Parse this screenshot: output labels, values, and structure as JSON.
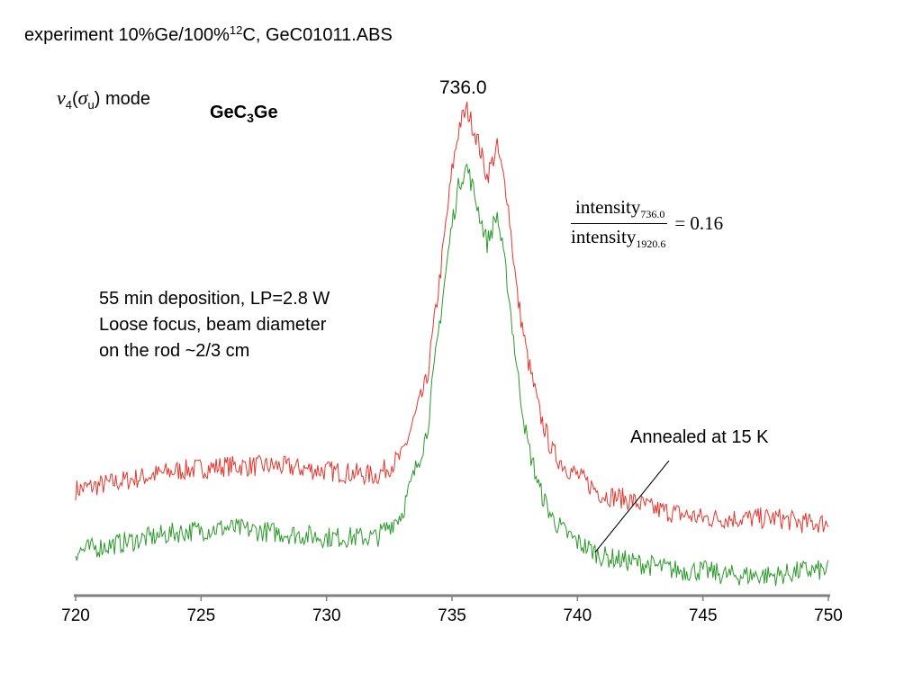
{
  "header": {
    "title_prefix": "experiment 10%Ge/100%",
    "title_sup": "12",
    "title_suffix": "C, GeC01011.ABS"
  },
  "mode_label": {
    "nu": "ν",
    "nu_sub": "4",
    "open": "(",
    "sigma": "σ",
    "sigma_sub": "u",
    "close": ") mode"
  },
  "species": {
    "base": "GeC",
    "sub": "3",
    "tail": "Ge"
  },
  "peak_label": "736.0",
  "ratio": {
    "numerator": "intensity",
    "numerator_sub": "736.0",
    "denominator": "intensity",
    "denominator_sub": "1920.6",
    "value": "= 0.16"
  },
  "note": {
    "line1": "55 min deposition, LP=2.8 W",
    "line2": "Loose focus, beam diameter",
    "line3": "on the rod ~2/3 cm"
  },
  "annotation": "Annealed at 15 K",
  "colors": {
    "as_deposited": "#e8342c",
    "annealed": "#2a9a2a",
    "axis": "#808080"
  },
  "chart_data": {
    "type": "line",
    "xlim": [
      720,
      750
    ],
    "xticks": [
      "720",
      "725",
      "730",
      "735",
      "740",
      "745",
      "750"
    ],
    "grid": false,
    "series": [
      {
        "color": "#e8342c",
        "x": [
          720,
          722,
          724,
          726,
          728,
          730,
          732,
          733,
          734,
          734.5,
          735,
          735.3,
          735.6,
          736,
          736.4,
          736.8,
          737.2,
          737.6,
          738,
          738.5,
          739,
          739.5,
          740,
          741,
          742,
          743,
          744,
          745,
          746,
          747,
          748,
          749,
          750
        ],
        "y": [
          0.2,
          0.22,
          0.24,
          0.25,
          0.25,
          0.24,
          0.23,
          0.27,
          0.43,
          0.64,
          0.87,
          0.97,
          1.0,
          0.94,
          0.86,
          0.92,
          0.82,
          0.61,
          0.48,
          0.36,
          0.28,
          0.25,
          0.23,
          0.19,
          0.18,
          0.16,
          0.15,
          0.14,
          0.14,
          0.14,
          0.14,
          0.13,
          0.13
        ]
      },
      {
        "color": "#2a9a2a",
        "x": [
          720,
          722,
          724,
          726,
          728,
          730,
          732,
          733,
          734,
          734.5,
          735,
          735.3,
          735.6,
          736,
          736.4,
          736.8,
          737.2,
          737.6,
          738,
          738.5,
          739,
          739.5,
          740,
          741,
          742,
          743,
          744,
          745,
          746,
          747,
          748,
          749,
          750
        ],
        "y": [
          0.07,
          0.09,
          0.11,
          0.12,
          0.11,
          0.1,
          0.1,
          0.15,
          0.32,
          0.55,
          0.76,
          0.85,
          0.88,
          0.8,
          0.72,
          0.78,
          0.64,
          0.45,
          0.3,
          0.2,
          0.14,
          0.11,
          0.09,
          0.06,
          0.05,
          0.04,
          0.03,
          0.03,
          0.02,
          0.02,
          0.02,
          0.03,
          0.03
        ]
      }
    ]
  }
}
